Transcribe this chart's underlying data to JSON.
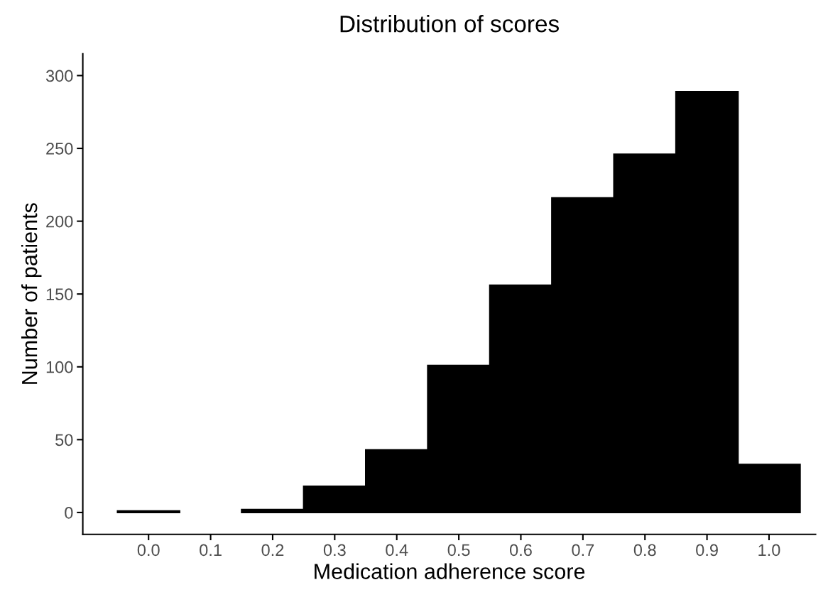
{
  "chart_data": {
    "type": "histogram",
    "title": "Distribution of scores",
    "xlabel": "Medication adherence score",
    "ylabel": "Number of patients",
    "bins": [
      -0.05,
      0.05,
      0.15,
      0.25,
      0.35,
      0.45,
      0.55,
      0.65,
      0.75,
      0.85,
      0.95,
      1.05
    ],
    "values": [
      1,
      0,
      2,
      18,
      43,
      101,
      156,
      216,
      246,
      289,
      33
    ],
    "color": "#000000",
    "xlim": [
      -0.106,
      1.075
    ],
    "xticks": [
      {
        "value": 0,
        "label": "0.0"
      },
      0.1,
      0.2,
      0.3,
      0.4,
      0.5,
      0.6,
      0.7,
      0.8,
      0.9,
      {
        "value": 1,
        "label": "1.0"
      }
    ],
    "ylim": [
      -15,
      315
    ],
    "yticks": [
      0,
      50,
      100,
      150,
      200,
      250,
      300
    ],
    "grid": false
  }
}
